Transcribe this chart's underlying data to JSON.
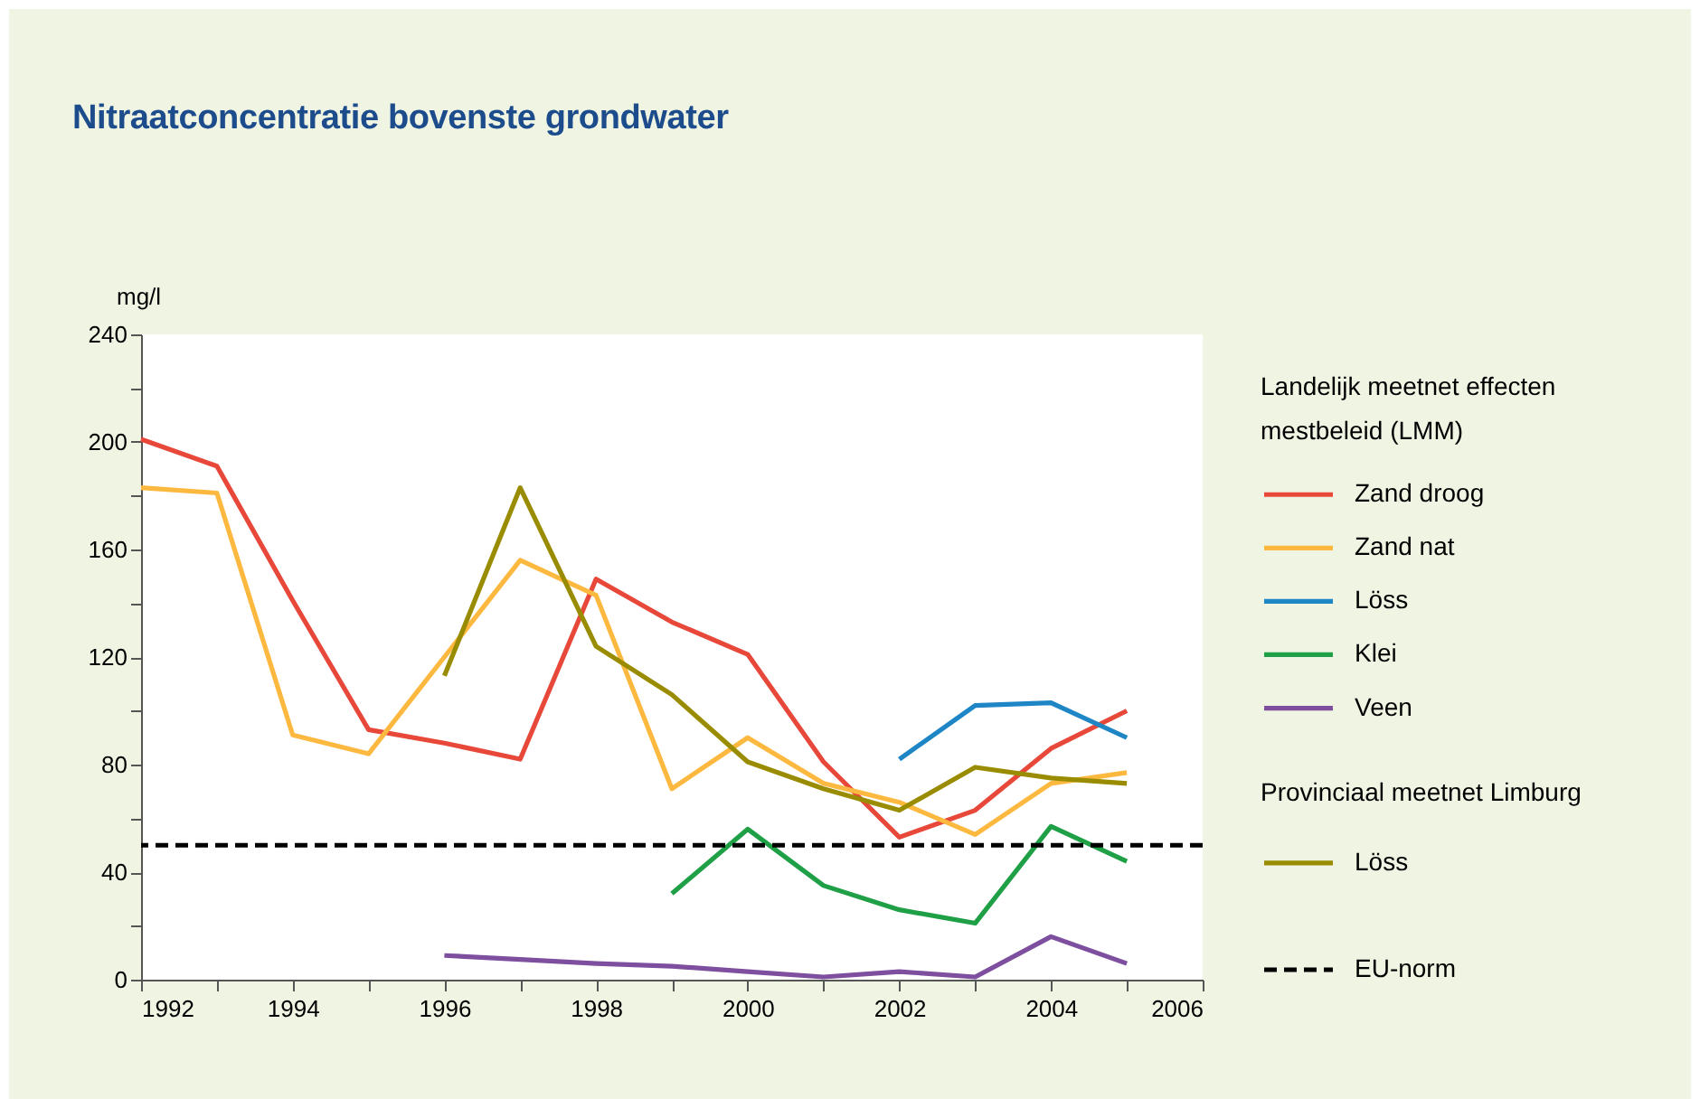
{
  "chart_data": {
    "type": "line",
    "title": "Nitraatconcentratie bovenste grondwater",
    "ylabel": "mg/l",
    "legend_title": "Landelijk meetnet effecten mestbeleid (LMM)",
    "annotations": [
      "Provinciaal meetnet Limburg"
    ],
    "xlim": [
      1992,
      2006
    ],
    "ylim": [
      0,
      240
    ],
    "xticks": [
      1992,
      {
        "value": 1993,
        "label": null
      },
      1994,
      {
        "value": 1995,
        "label": null
      },
      1996,
      {
        "value": 1997,
        "label": null
      },
      1998,
      {
        "value": 1999,
        "label": null
      },
      2000,
      {
        "value": 2001,
        "label": null
      },
      2002,
      {
        "value": 2003,
        "label": null
      },
      2004,
      {
        "value": 2005,
        "label": null
      },
      2006
    ],
    "yticks": [
      0,
      {
        "value": 20,
        "label": null
      },
      40,
      {
        "value": 60,
        "label": null
      },
      80,
      {
        "value": 100,
        "label": null
      },
      120,
      {
        "value": 140,
        "label": null
      },
      160,
      {
        "value": 180,
        "label": null
      },
      200,
      {
        "value": 220,
        "label": null
      },
      240
    ],
    "grid": false,
    "legend": "right",
    "marker": "none",
    "line_style": "solid",
    "series": [
      {
        "name": "Zand droog",
        "color": "#e8483a",
        "x": [
          1992,
          1993,
          1994,
          1995,
          1996,
          1997,
          1998,
          1999,
          2000,
          2001,
          2002,
          2003,
          2004,
          2005
        ],
        "values": [
          201,
          191,
          141,
          93,
          88,
          82,
          149,
          133,
          121,
          81,
          53,
          63,
          86,
          100
        ]
      },
      {
        "name": "Zand nat",
        "color": "#fdb93f",
        "x": [
          1992,
          1993,
          1994,
          1995,
          1996,
          1997,
          1998,
          1999,
          2000,
          2001,
          2002,
          2003,
          2004,
          2005
        ],
        "values": [
          183,
          181,
          91,
          84,
          120,
          156,
          143,
          71,
          90,
          73,
          66,
          54,
          73,
          77
        ]
      },
      {
        "name": "Löss",
        "color": "#1f86c6",
        "x": [
          2002,
          2003,
          2004,
          2005
        ],
        "values": [
          82,
          102,
          103,
          90
        ]
      },
      {
        "name": "Klei",
        "color": "#1fa046",
        "x": [
          1999,
          2000,
          2001,
          2002,
          2003,
          2004,
          2005
        ],
        "values": [
          32,
          56,
          35,
          26,
          21,
          57,
          44
        ]
      },
      {
        "name": "Veen",
        "color": "#7f4f9f",
        "x": [
          1996,
          1997,
          1998,
          1999,
          2000,
          2001,
          2002,
          2003,
          2004,
          2005
        ],
        "values": [
          9,
          7.5,
          6,
          5,
          3,
          1,
          3,
          1,
          16,
          6
        ]
      },
      {
        "name": "Löss",
        "color": "#9a8c00",
        "x": [
          1996,
          1997,
          1998,
          1999,
          2000,
          2001,
          2002,
          2003,
          2004,
          2005
        ],
        "values": [
          113,
          183,
          124,
          106,
          81,
          71,
          63,
          79,
          75,
          73
        ]
      }
    ],
    "ref_lines": [
      {
        "axis": "y",
        "value": 50,
        "label": "EU-norm",
        "color": "#000000",
        "line_style": "dashed"
      }
    ]
  }
}
